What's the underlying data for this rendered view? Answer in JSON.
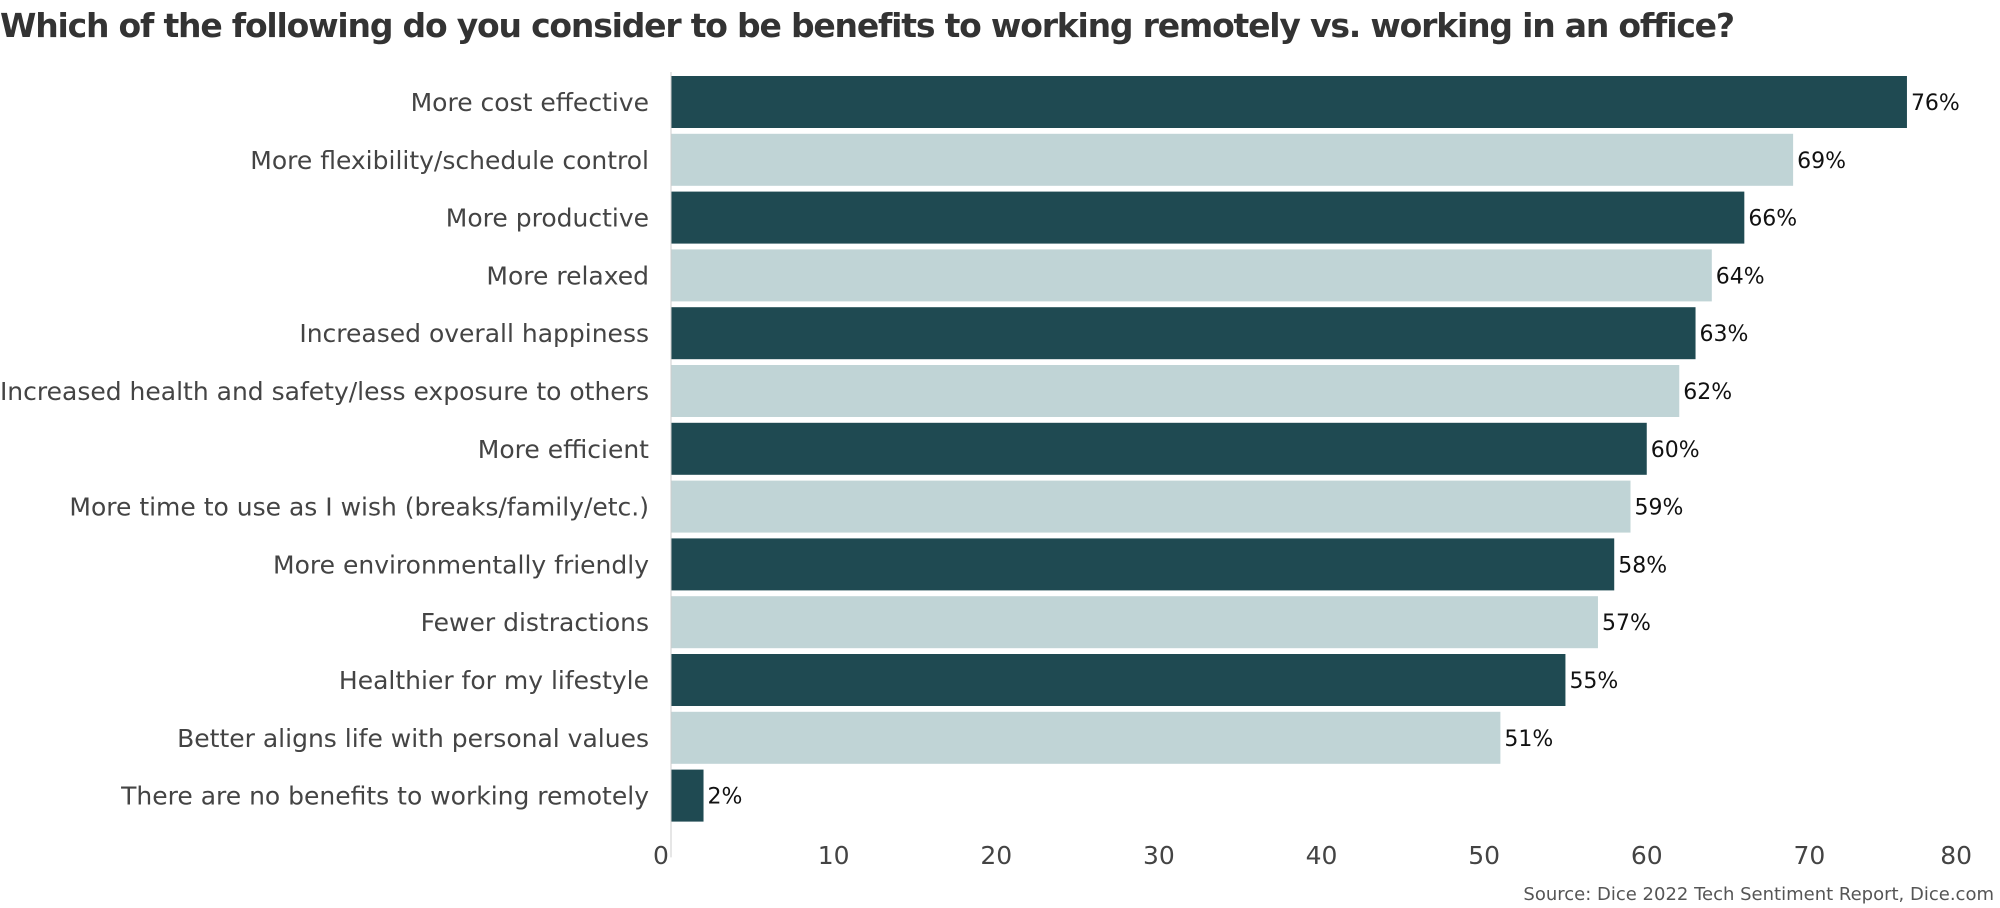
{
  "chart_data": {
    "type": "bar",
    "orientation": "horizontal",
    "title": "Which of the following do you consider to be benefits to working remotely vs. working in an office?",
    "categories": [
      "More cost effective",
      "More flexibility/schedule control",
      "More productive",
      "More relaxed",
      "Increased overall happiness",
      "Increased health and safety/less exposure to others",
      "More efficient",
      "More time to use as I wish (breaks/family/etc.)",
      "More environmentally friendly",
      "Fewer distractions",
      "Healthier for my lifestyle",
      "Better aligns life with personal values",
      "There are no benefits to working remotely"
    ],
    "values": [
      76,
      69,
      66,
      64,
      63,
      62,
      60,
      59,
      58,
      57,
      55,
      51,
      2
    ],
    "value_labels": [
      "76%",
      "69%",
      "66%",
      "64%",
      "63%",
      "62%",
      "60%",
      "59%",
      "58%",
      "57%",
      "55%",
      "51%",
      "2%"
    ],
    "xlim": [
      0,
      80
    ],
    "xticks": [
      0,
      10,
      20,
      30,
      40,
      50,
      60,
      70,
      80
    ],
    "xlabel": "",
    "ylabel": "",
    "grid": false,
    "colors": {
      "bar_dark": "#1f4a52",
      "bar_light": "#c0d4d6",
      "axis": "#cccccc"
    },
    "source": "Source: Dice 2022 Tech Sentiment Report, Dice.com"
  }
}
